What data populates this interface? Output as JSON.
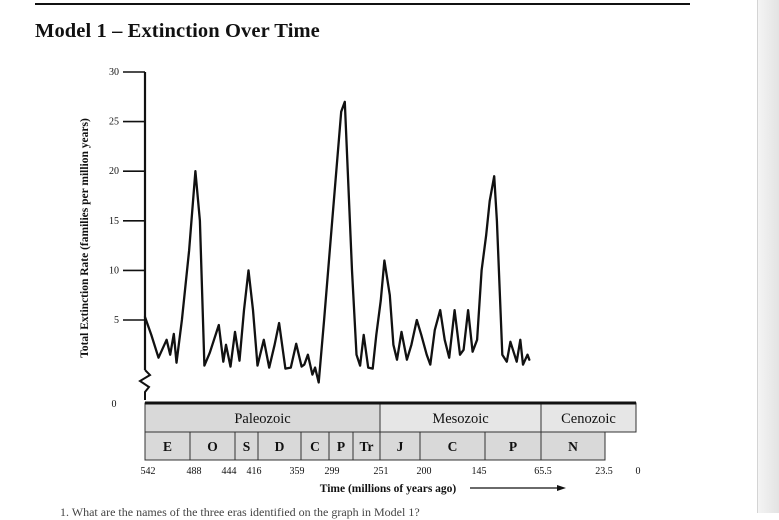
{
  "page": {
    "title": "Model 1 – Extinction Over Time"
  },
  "chart_data": {
    "type": "line",
    "title": "Model 1 – Extinction Over Time",
    "ylabel": "Total Extinction Rate (families per million years)",
    "xlabel": "Time (millions of years ago)",
    "ylim": [
      0,
      30
    ],
    "y_ticks": [
      "0",
      "5",
      "10",
      "15",
      "20",
      "25",
      "30"
    ],
    "y_tick_values": [
      5,
      10,
      15,
      20,
      25,
      30
    ],
    "x_direction": "right-to-left (past to present)",
    "x_tick_labels": [
      "542",
      "488",
      "444",
      "416",
      "359",
      "299",
      "251",
      "200",
      "145",
      "65.5",
      "23.5",
      "0"
    ],
    "eras": [
      {
        "name": "Paleozoic",
        "start": 542,
        "end": 251
      },
      {
        "name": "Mesozoic",
        "start": 251,
        "end": 65.5
      },
      {
        "name": "Cenozoic",
        "start": 65.5,
        "end": 0
      }
    ],
    "periods": [
      {
        "abbr": "E",
        "start": 542,
        "end": 488
      },
      {
        "abbr": "O",
        "start": 488,
        "end": 444
      },
      {
        "abbr": "S",
        "start": 444,
        "end": 416
      },
      {
        "abbr": "D",
        "start": 416,
        "end": 359
      },
      {
        "abbr": "C",
        "start": 359,
        "end": 299
      },
      {
        "abbr": "P",
        "start": 299,
        "end": 251
      },
      {
        "abbr": "Tr",
        "start": 251,
        "end": 200
      },
      {
        "abbr": "J",
        "start": 200,
        "end": 145
      },
      {
        "abbr": "C",
        "start": 145,
        "end": 65.5
      },
      {
        "abbr": "P",
        "start": 65.5,
        "end": 23.5
      },
      {
        "abbr": "N",
        "start": 23.5,
        "end": 0
      }
    ],
    "series": [
      {
        "values": [
          [
            542,
            5.3
          ],
          [
            535,
            3.5
          ],
          [
            527,
            1.2
          ],
          [
            518,
            3.0
          ],
          [
            514,
            1.5
          ],
          [
            510,
            3.6
          ],
          [
            507,
            0.7
          ],
          [
            501,
            5.0
          ],
          [
            493,
            12.0
          ],
          [
            486,
            20.0
          ],
          [
            481,
            15.0
          ],
          [
            476,
            0.4
          ],
          [
            470,
            1.7
          ],
          [
            460,
            4.5
          ],
          [
            455,
            0.8
          ],
          [
            452,
            2.5
          ],
          [
            447,
            0.3
          ],
          [
            442,
            3.8
          ],
          [
            437,
            0.9
          ],
          [
            432,
            6.0
          ],
          [
            427,
            10.0
          ],
          [
            422,
            6.0
          ],
          [
            417,
            0.4
          ],
          [
            410,
            3.0
          ],
          [
            404,
            0.2
          ],
          [
            398,
            2.5
          ],
          [
            393,
            4.7
          ],
          [
            386,
            0.1
          ],
          [
            380,
            0.2
          ],
          [
            374,
            2.6
          ],
          [
            368,
            0.3
          ],
          [
            365,
            0.5
          ],
          [
            361,
            1.5
          ],
          [
            356,
            -0.5
          ],
          [
            353,
            0.2
          ],
          [
            349,
            -1.3
          ],
          [
            343,
            5.0
          ],
          [
            334,
            15.0
          ],
          [
            324,
            26.0
          ],
          [
            320,
            27.0
          ],
          [
            312,
            10.0
          ],
          [
            307,
            1.5
          ],
          [
            303,
            0.4
          ],
          [
            299,
            3.5
          ],
          [
            294,
            0.2
          ],
          [
            289,
            0.1
          ],
          [
            285,
            3.5
          ],
          [
            280,
            7.0
          ],
          [
            276,
            11.0
          ],
          [
            270,
            7.5
          ],
          [
            266,
            2.5
          ],
          [
            262,
            1.0
          ],
          [
            257,
            3.8
          ],
          [
            251,
            1.0
          ],
          [
            246,
            2.5
          ],
          [
            240,
            5.0
          ],
          [
            235,
            3.5
          ],
          [
            229,
            1.5
          ],
          [
            225,
            0.5
          ],
          [
            220,
            4.0
          ],
          [
            214,
            6.0
          ],
          [
            209,
            3.0
          ],
          [
            204,
            1.2
          ],
          [
            198,
            6.0
          ],
          [
            192,
            1.5
          ],
          [
            188,
            2.0
          ],
          [
            183,
            6.0
          ],
          [
            178,
            1.8
          ],
          [
            173,
            3.0
          ],
          [
            168,
            10.0
          ],
          [
            163,
            13.5
          ],
          [
            159,
            17.0
          ],
          [
            154,
            19.5
          ],
          [
            151,
            15.0
          ],
          [
            145,
            1.5
          ],
          [
            140,
            0.8
          ],
          [
            136,
            2.8
          ],
          [
            129,
            0.8
          ],
          [
            125,
            3.0
          ],
          [
            122,
            0.5
          ],
          [
            117,
            1.5
          ],
          [
            115,
            1.0
          ]
        ]
      }
    ],
    "grid": false,
    "legend": "none"
  },
  "footer": {
    "partial_text": "1.  What are the names of the three eras identified on the graph in Model 1?"
  }
}
